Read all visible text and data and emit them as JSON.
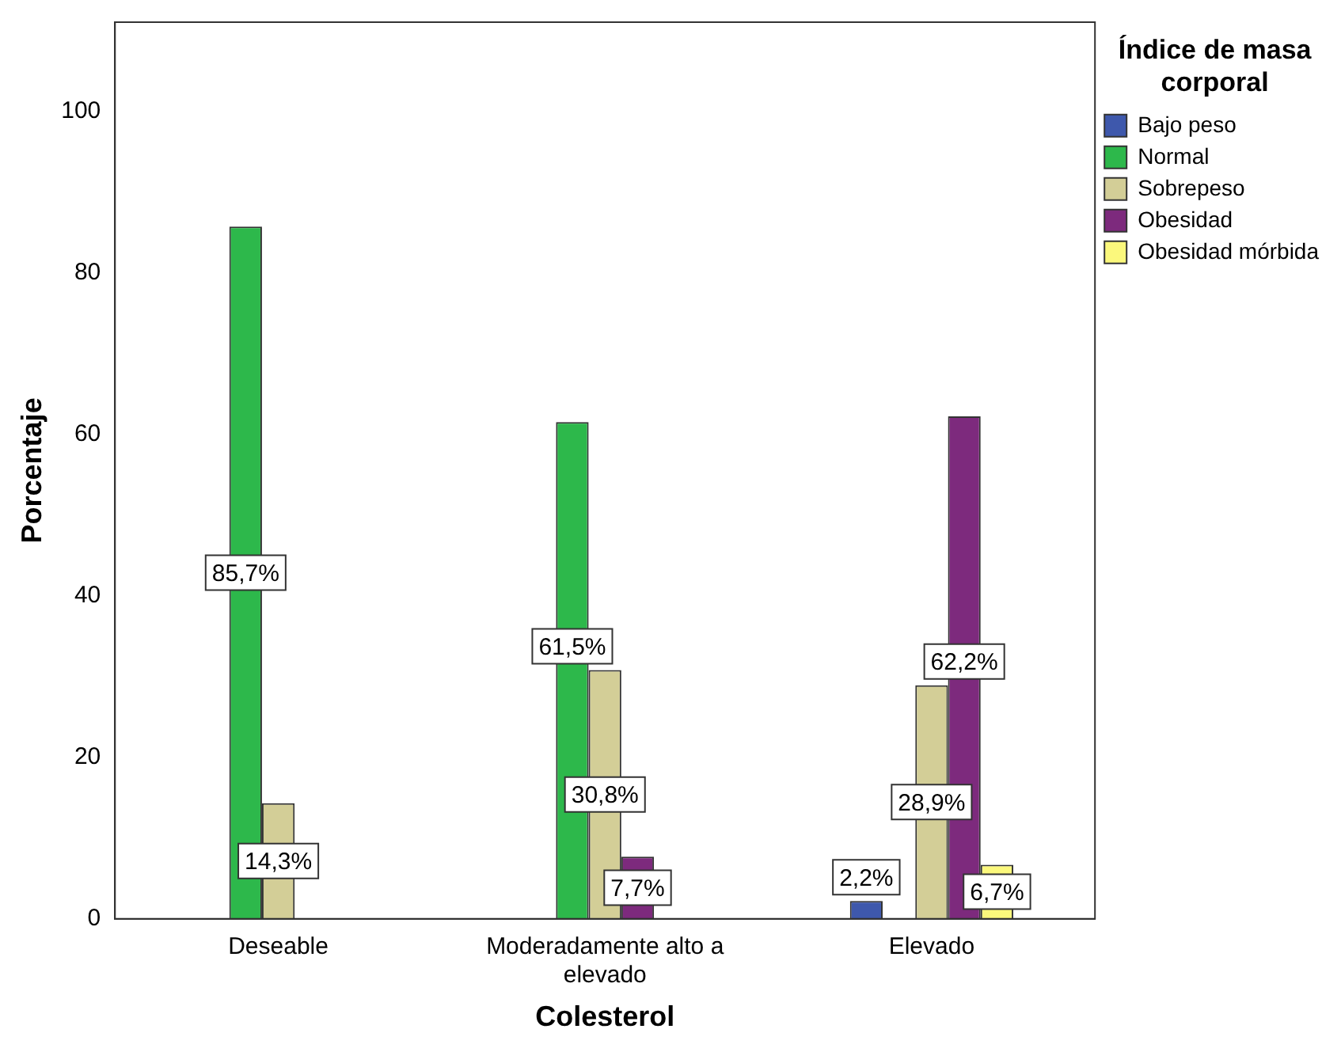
{
  "chart_data": {
    "type": "bar",
    "xlabel": "Colesterol",
    "ylabel": "Porcentaje",
    "legend_title": "Índice de masa corporal",
    "legend": "top right",
    "grid": false,
    "categories": [
      "Deseable",
      "Moderadamente alto a elevado",
      "Elevado"
    ],
    "ylim": [
      0,
      111
    ],
    "yticks": [
      0,
      20,
      40,
      60,
      80,
      100
    ],
    "series": [
      {
        "name": "Bajo peso",
        "color": "#3e58ac",
        "values": [
          null,
          null,
          2.2
        ],
        "value_labels": [
          null,
          null,
          "2,2%"
        ]
      },
      {
        "name": "Normal",
        "color": "#2db84b",
        "values": [
          85.7,
          61.5,
          null
        ],
        "value_labels": [
          "85,7%",
          "61,5%",
          null
        ]
      },
      {
        "name": "Sobrepeso",
        "color": "#d3ce97",
        "values": [
          14.3,
          30.8,
          28.9
        ],
        "value_labels": [
          "14,3%",
          "30,8%",
          "28,9%"
        ]
      },
      {
        "name": "Obesidad",
        "color": "#7d2a7d",
        "values": [
          null,
          7.7,
          62.2
        ],
        "value_labels": [
          null,
          "7,7%",
          "62,2%"
        ]
      },
      {
        "name": "Obesidad mórbida",
        "color": "#fbf87c",
        "values": [
          null,
          null,
          6.7
        ],
        "value_labels": [
          null,
          null,
          "6,7%"
        ]
      }
    ]
  }
}
